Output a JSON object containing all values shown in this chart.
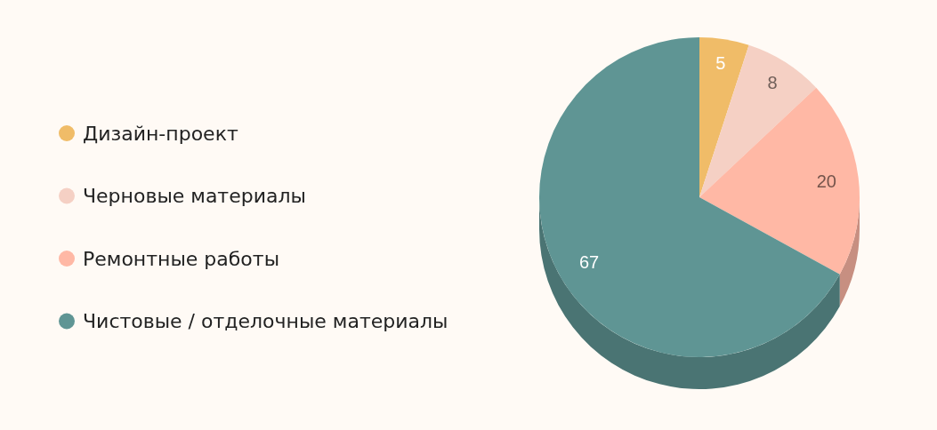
{
  "chart_data": {
    "type": "pie",
    "categories": [
      "Дизайн-проект",
      "Черновые материалы",
      "Ремонтные работы",
      "Чистовые / отделочные материалы"
    ],
    "values": [
      5,
      8,
      20,
      67
    ],
    "colors": [
      "#f0bc68",
      "#f5d0c4",
      "#ffb8a5",
      "#5f9594"
    ],
    "data_labels": true,
    "legend": "left"
  }
}
